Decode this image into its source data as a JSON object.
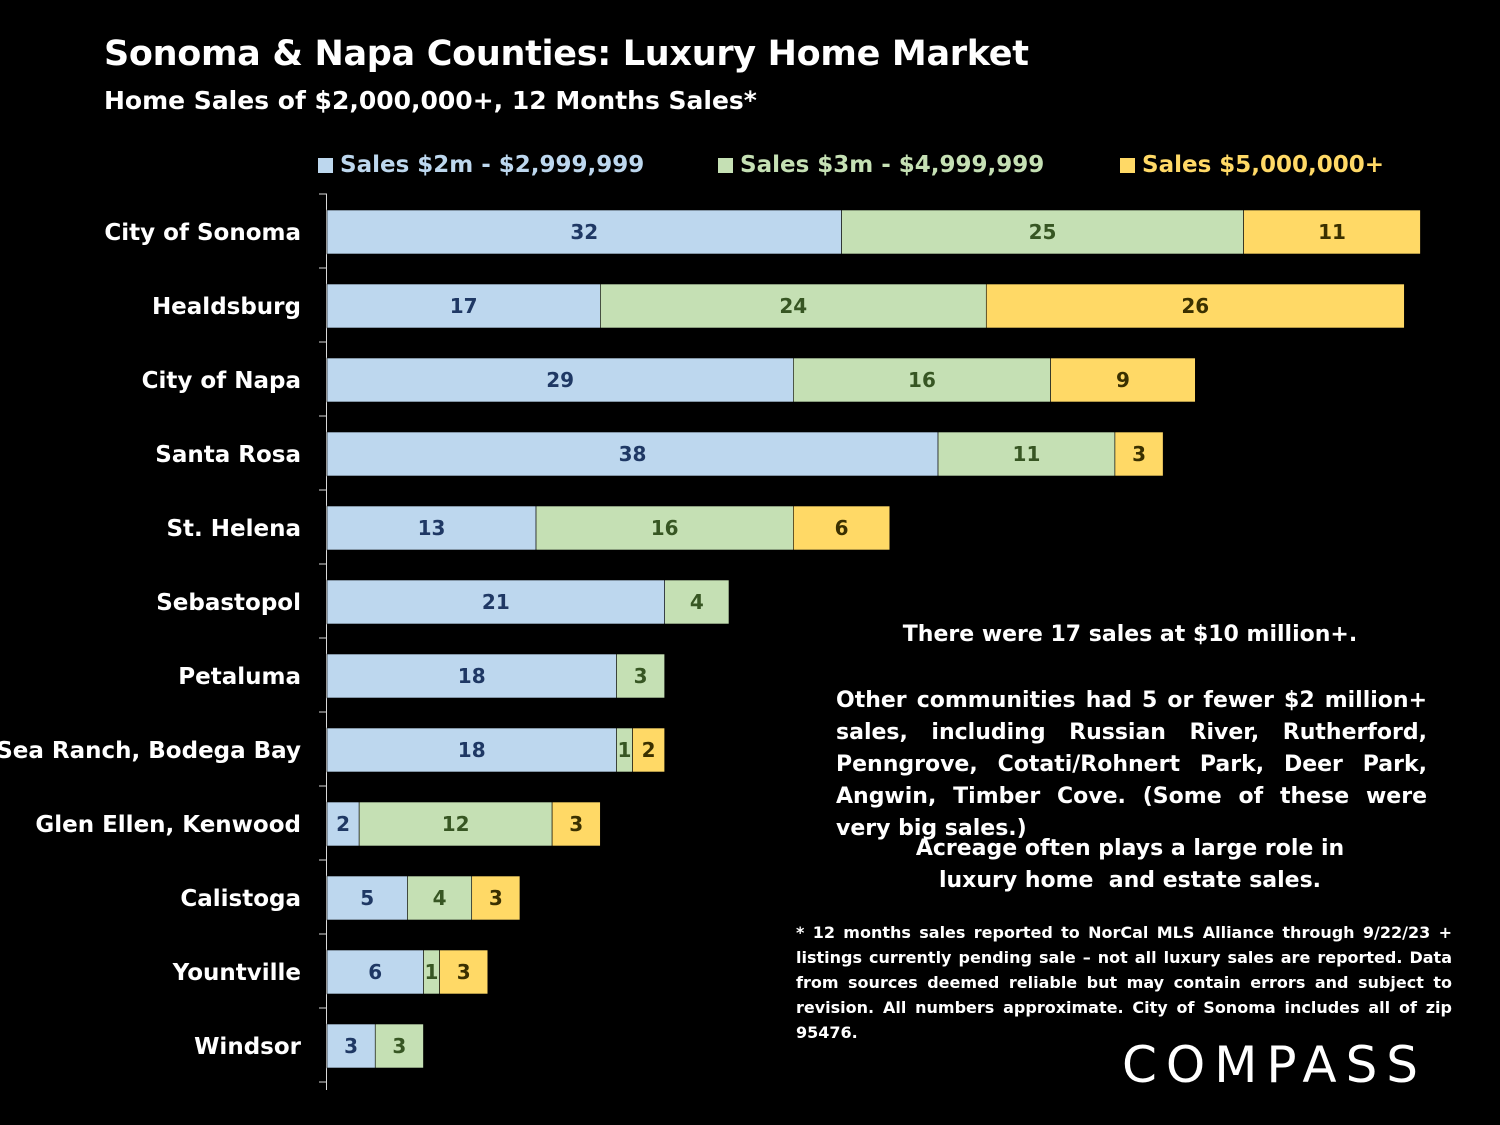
{
  "title": "Sonoma & Napa Counties: Luxury Home Market",
  "subtitle": "Home Sales of $2,000,000+, 12 Months Sales*",
  "colors": {
    "series1": "#bdd7ee",
    "series2": "#c5e0b4",
    "series3": "#ffd966",
    "label1": "#1f3864",
    "label2": "#375623",
    "label3": "#3a3000",
    "legend1": "#bdd7ee",
    "legend2": "#c5e0b4",
    "legend3": "#ffd966"
  },
  "chart_data": {
    "type": "bar",
    "orientation": "horizontal",
    "stacked": true,
    "categories": [
      "City of Sonoma",
      "Healdsburg",
      "City of Napa",
      "Santa Rosa",
      "St. Helena",
      "Sebastopol",
      "Petaluma",
      "Sea Ranch, Bodega Bay",
      "Glen Ellen, Kenwood",
      "Calistoga",
      "Yountville",
      "Windsor"
    ],
    "series": [
      {
        "name": "Sales $2m - $2,999,999",
        "values": [
          32,
          17,
          29,
          38,
          13,
          21,
          18,
          18,
          2,
          5,
          6,
          3
        ]
      },
      {
        "name": "Sales $3m - $4,999,999",
        "values": [
          25,
          24,
          16,
          11,
          16,
          4,
          3,
          1,
          12,
          4,
          1,
          3
        ]
      },
      {
        "name": "Sales $5,000,000+",
        "values": [
          11,
          26,
          9,
          3,
          6,
          null,
          null,
          2,
          3,
          3,
          3,
          null
        ]
      }
    ],
    "legend_position": "top",
    "grid": false
  },
  "notes": {
    "ten_million": "There were 17 sales at $10 million+.",
    "other_communities": "Other communities had 5 or fewer $2 million+ sales, including Russian River, Rutherford, Penngrove, Cotati/Rohnert Park, Deer Park, Angwin, Timber Cove. (Some of these were very big sales.)",
    "acreage_line1": "Acreage often plays a large role in",
    "acreage_line2": "luxury home  and estate sales.",
    "footnote": "* 12 months sales reported to NorCal MLS Alliance through 9/22/23 + listings currently pending sale – not all luxury sales are reported. Data from sources deemed reliable but may contain errors and subject to revision. All numbers approximate.  City of Sonoma includes all of zip 95476."
  },
  "logo": "COMPASS"
}
